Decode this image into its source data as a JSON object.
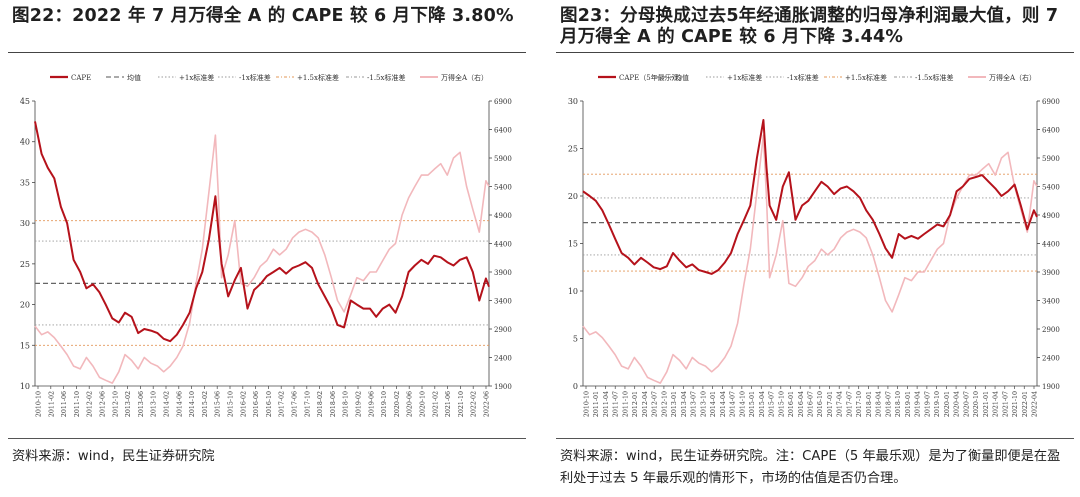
{
  "left": {
    "title": "图22：2022 年 7 月万得全 A 的 CAPE 较 6 月下降 3.80%",
    "source": "资料来源：wind，民生证券研究院",
    "chart_data": {
      "type": "line",
      "legend": [
        "CAPE",
        "均值",
        "+1x标准差",
        "-1x标准差",
        "+1.5x标准差",
        "-1.5x标准差",
        "万得全A（右）"
      ],
      "legend_position": "top",
      "y_left_ticks": [
        10,
        15,
        20,
        25,
        30,
        35,
        40,
        45
      ],
      "y_right_ticks": [
        1900,
        2400,
        2900,
        3400,
        3900,
        4400,
        4900,
        5400,
        5900,
        6400,
        6900
      ],
      "ylim_left": [
        10,
        45
      ],
      "ylim_right": [
        1900,
        6900
      ],
      "x_tick_labels": [
        "2010-10",
        "2011-02",
        "2011-06",
        "2011-10",
        "2012-02",
        "2012-06",
        "2012-10",
        "2013-02",
        "2013-06",
        "2013-10",
        "2014-02",
        "2014-06",
        "2014-10",
        "2015-02",
        "2015-06",
        "2015-10",
        "2016-02",
        "2016-06",
        "2016-10",
        "2017-02",
        "2017-06",
        "2017-10",
        "2018-02",
        "2018-06",
        "2018-10",
        "2019-02",
        "2019-06",
        "2019-10",
        "2020-02",
        "2020-06",
        "2020-10",
        "2021-02",
        "2021-06",
        "2021-10",
        "2022-02",
        "2022-06"
      ],
      "reference_lines": {
        "mean": 22.6,
        "plus_1sd": 27.8,
        "minus_1sd": 17.5,
        "plus_1_5sd": 30.3,
        "minus_1_5sd": 15.0
      },
      "series": [
        {
          "name": "CAPE",
          "axis": "left",
          "color": "#b5121b",
          "x": [
            2010.75,
            2010.92,
            2011.08,
            2011.25,
            2011.42,
            2011.58,
            2011.75,
            2011.92,
            2012.08,
            2012.25,
            2012.42,
            2012.58,
            2012.75,
            2012.92,
            2013.08,
            2013.25,
            2013.42,
            2013.58,
            2013.75,
            2013.92,
            2014.08,
            2014.25,
            2014.42,
            2014.58,
            2014.75,
            2014.92,
            2015.08,
            2015.25,
            2015.42,
            2015.5,
            2015.58,
            2015.75,
            2015.92,
            2016.08,
            2016.25,
            2016.42,
            2016.58,
            2016.75,
            2016.92,
            2017.08,
            2017.25,
            2017.42,
            2017.58,
            2017.75,
            2017.92,
            2018.08,
            2018.25,
            2018.42,
            2018.58,
            2018.75,
            2018.92,
            2019.08,
            2019.25,
            2019.42,
            2019.58,
            2019.75,
            2019.92,
            2020.08,
            2020.25,
            2020.42,
            2020.58,
            2020.75,
            2020.92,
            2021.08,
            2021.25,
            2021.42,
            2021.58,
            2021.75,
            2021.92,
            2022.08,
            2022.25,
            2022.42,
            2022.5
          ],
          "y": [
            42.5,
            38.5,
            36.8,
            35.5,
            32,
            30,
            25.5,
            24,
            22,
            22.5,
            21.5,
            20,
            18.3,
            17.8,
            19,
            18.5,
            16.5,
            17,
            16.8,
            16.5,
            15.8,
            15.5,
            16.3,
            17.5,
            19,
            22,
            24,
            28,
            33.3,
            29,
            25,
            21,
            23,
            24.5,
            19.5,
            21.8,
            22.5,
            23.5,
            24,
            24.5,
            23.8,
            24.5,
            24.8,
            25.2,
            24.5,
            22.5,
            21,
            19.5,
            17.5,
            17.2,
            20.5,
            20,
            19.5,
            19.5,
            18.5,
            19.5,
            20,
            19,
            21,
            24,
            24.8,
            25.5,
            25,
            26,
            25.8,
            25.2,
            24.8,
            25.5,
            25.8,
            24,
            20.5,
            23.2,
            22.2
          ]
        },
        {
          "name": "万得全A（右）",
          "axis": "right",
          "color": "#f2b8bc",
          "x": [
            2010.75,
            2010.92,
            2011.08,
            2011.25,
            2011.42,
            2011.58,
            2011.75,
            2011.92,
            2012.08,
            2012.25,
            2012.42,
            2012.58,
            2012.75,
            2012.92,
            2013.08,
            2013.25,
            2013.42,
            2013.58,
            2013.75,
            2013.92,
            2014.08,
            2014.25,
            2014.42,
            2014.58,
            2014.75,
            2014.92,
            2015.08,
            2015.25,
            2015.42,
            2015.5,
            2015.58,
            2015.75,
            2015.92,
            2016.08,
            2016.25,
            2016.42,
            2016.58,
            2016.75,
            2016.92,
            2017.08,
            2017.25,
            2017.42,
            2017.58,
            2017.75,
            2017.92,
            2018.08,
            2018.25,
            2018.42,
            2018.58,
            2018.75,
            2018.92,
            2019.08,
            2019.25,
            2019.42,
            2019.58,
            2019.75,
            2019.92,
            2020.08,
            2020.25,
            2020.42,
            2020.58,
            2020.75,
            2020.92,
            2021.08,
            2021.25,
            2021.42,
            2021.58,
            2021.75,
            2021.92,
            2022.08,
            2022.25,
            2022.42,
            2022.5
          ],
          "y": [
            2950,
            2800,
            2850,
            2750,
            2600,
            2450,
            2250,
            2200,
            2400,
            2250,
            2050,
            2000,
            1950,
            2150,
            2450,
            2350,
            2200,
            2400,
            2300,
            2250,
            2150,
            2250,
            2400,
            2600,
            3000,
            3700,
            4300,
            5300,
            6300,
            5200,
            3800,
            4200,
            4800,
            3700,
            3650,
            3800,
            4000,
            4100,
            4300,
            4200,
            4300,
            4500,
            4600,
            4650,
            4600,
            4500,
            4200,
            3800,
            3400,
            3200,
            3500,
            3800,
            3750,
            3900,
            3900,
            4100,
            4300,
            4400,
            4900,
            5200,
            5400,
            5600,
            5600,
            5700,
            5800,
            5600,
            5900,
            6000,
            5400,
            5000,
            4600,
            5500,
            5400
          ]
        }
      ]
    }
  },
  "right": {
    "title": "图23：分母换成过去5年经通胀调整的归母净利润最大值，则 7 月万得全 A 的 CAPE 较 6 月下降 3.44%",
    "source": "资料来源：wind，民生证券研究院。注：CAPE（5 年最乐观）是为了衡量即便是在盈利处于过去 5 年最乐观的情形下，市场的估值是否仍合理。",
    "chart_data": {
      "type": "line",
      "legend": [
        "CAPE（5年最乐观）",
        "均值",
        "+1x标准差",
        "-1x标准差",
        "+1.5x标准差",
        "-1.5x标准差",
        "万得全A（右）"
      ],
      "legend_position": "top",
      "y_left_ticks": [
        0,
        5,
        10,
        15,
        20,
        25,
        30
      ],
      "y_right_ticks": [
        1900,
        2400,
        2900,
        3400,
        3900,
        4400,
        4900,
        5400,
        5900,
        6400,
        6900
      ],
      "ylim_left": [
        0,
        30
      ],
      "ylim_right": [
        1900,
        6900
      ],
      "x_tick_labels": [
        "2010-10",
        "2011-01",
        "2011-04",
        "2011-07",
        "2011-10",
        "2012-01",
        "2012-04",
        "2012-07",
        "2012-10",
        "2013-01",
        "2013-04",
        "2013-07",
        "2013-10",
        "2014-01",
        "2014-04",
        "2014-07",
        "2014-10",
        "2015-01",
        "2015-04",
        "2015-07",
        "2015-10",
        "2016-01",
        "2016-04",
        "2016-07",
        "2016-10",
        "2017-01",
        "2017-04",
        "2017-07",
        "2017-10",
        "2018-01",
        "2018-04",
        "2018-07",
        "2018-10",
        "2019-01",
        "2019-04",
        "2019-07",
        "2019-10",
        "2020-01",
        "2020-04",
        "2020-07",
        "2020-10",
        "2021-01",
        "2021-04",
        "2021-07",
        "2021-10",
        "2022-01",
        "2022-04"
      ],
      "reference_lines": {
        "mean": 17.2,
        "plus_1sd": 19.8,
        "minus_1sd": 13.8,
        "plus_1_5sd": 22.3,
        "minus_1_5sd": 12.1
      },
      "series": [
        {
          "name": "CAPE（5年最乐观）",
          "axis": "left",
          "color": "#b5121b",
          "x": [
            2010.75,
            2010.92,
            2011.08,
            2011.25,
            2011.42,
            2011.58,
            2011.75,
            2011.92,
            2012.08,
            2012.25,
            2012.42,
            2012.58,
            2012.75,
            2012.92,
            2013.08,
            2013.25,
            2013.42,
            2013.58,
            2013.75,
            2013.92,
            2014.08,
            2014.25,
            2014.42,
            2014.58,
            2014.75,
            2014.92,
            2015.08,
            2015.25,
            2015.42,
            2015.5,
            2015.58,
            2015.75,
            2015.92,
            2016.08,
            2016.25,
            2016.42,
            2016.58,
            2016.75,
            2016.92,
            2017.08,
            2017.25,
            2017.42,
            2017.58,
            2017.75,
            2017.92,
            2018.08,
            2018.25,
            2018.42,
            2018.58,
            2018.75,
            2018.92,
            2019.08,
            2019.25,
            2019.42,
            2019.58,
            2019.75,
            2019.92,
            2020.08,
            2020.25,
            2020.42,
            2020.58,
            2020.75,
            2020.92,
            2021.08,
            2021.25,
            2021.42,
            2021.58,
            2021.75,
            2021.92,
            2022.08,
            2022.25,
            2022.42,
            2022.5
          ],
          "y": [
            20.5,
            20,
            19.5,
            18.5,
            17,
            15.5,
            14,
            13.5,
            12.8,
            13.5,
            13,
            12.5,
            12.3,
            12.6,
            14,
            13.2,
            12.5,
            12.8,
            12.2,
            12.0,
            11.8,
            12.2,
            13,
            14,
            16,
            17.5,
            19,
            24,
            28,
            23,
            19,
            17.5,
            21,
            22.5,
            17.5,
            19,
            19.5,
            20.5,
            21.5,
            21,
            20.2,
            20.8,
            21,
            20.5,
            19.8,
            18.5,
            17.5,
            16,
            14.5,
            13.5,
            16,
            15.5,
            15.8,
            15.5,
            16,
            16.5,
            17,
            16.8,
            18,
            20.5,
            21,
            21.8,
            22,
            22.2,
            21.5,
            20.8,
            20,
            20.5,
            21.2,
            19,
            16.5,
            18.5,
            17.8
          ]
        },
        {
          "name": "万得全A（右）",
          "axis": "right",
          "color": "#f2b8bc",
          "x": [
            2010.75,
            2010.92,
            2011.08,
            2011.25,
            2011.42,
            2011.58,
            2011.75,
            2011.92,
            2012.08,
            2012.25,
            2012.42,
            2012.58,
            2012.75,
            2012.92,
            2013.08,
            2013.25,
            2013.42,
            2013.58,
            2013.75,
            2013.92,
            2014.08,
            2014.25,
            2014.42,
            2014.58,
            2014.75,
            2014.92,
            2015.08,
            2015.25,
            2015.42,
            2015.5,
            2015.58,
            2015.75,
            2015.92,
            2016.08,
            2016.25,
            2016.42,
            2016.58,
            2016.75,
            2016.92,
            2017.08,
            2017.25,
            2017.42,
            2017.58,
            2017.75,
            2017.92,
            2018.08,
            2018.25,
            2018.42,
            2018.58,
            2018.75,
            2018.92,
            2019.08,
            2019.25,
            2019.42,
            2019.58,
            2019.75,
            2019.92,
            2020.08,
            2020.25,
            2020.42,
            2020.58,
            2020.75,
            2020.92,
            2021.08,
            2021.25,
            2021.42,
            2021.58,
            2021.75,
            2021.92,
            2022.08,
            2022.25,
            2022.42,
            2022.5
          ],
          "y": [
            2950,
            2800,
            2850,
            2750,
            2600,
            2450,
            2250,
            2200,
            2400,
            2250,
            2050,
            2000,
            1950,
            2150,
            2450,
            2350,
            2200,
            2400,
            2300,
            2250,
            2150,
            2250,
            2400,
            2600,
            3000,
            3700,
            4300,
            5300,
            6300,
            5200,
            3800,
            4200,
            4800,
            3700,
            3650,
            3800,
            4000,
            4100,
            4300,
            4200,
            4300,
            4500,
            4600,
            4650,
            4600,
            4500,
            4200,
            3800,
            3400,
            3200,
            3500,
            3800,
            3750,
            3900,
            3900,
            4100,
            4300,
            4400,
            4900,
            5200,
            5400,
            5600,
            5600,
            5700,
            5800,
            5600,
            5900,
            6000,
            5400,
            5000,
            4600,
            5500,
            5400
          ]
        }
      ]
    }
  }
}
